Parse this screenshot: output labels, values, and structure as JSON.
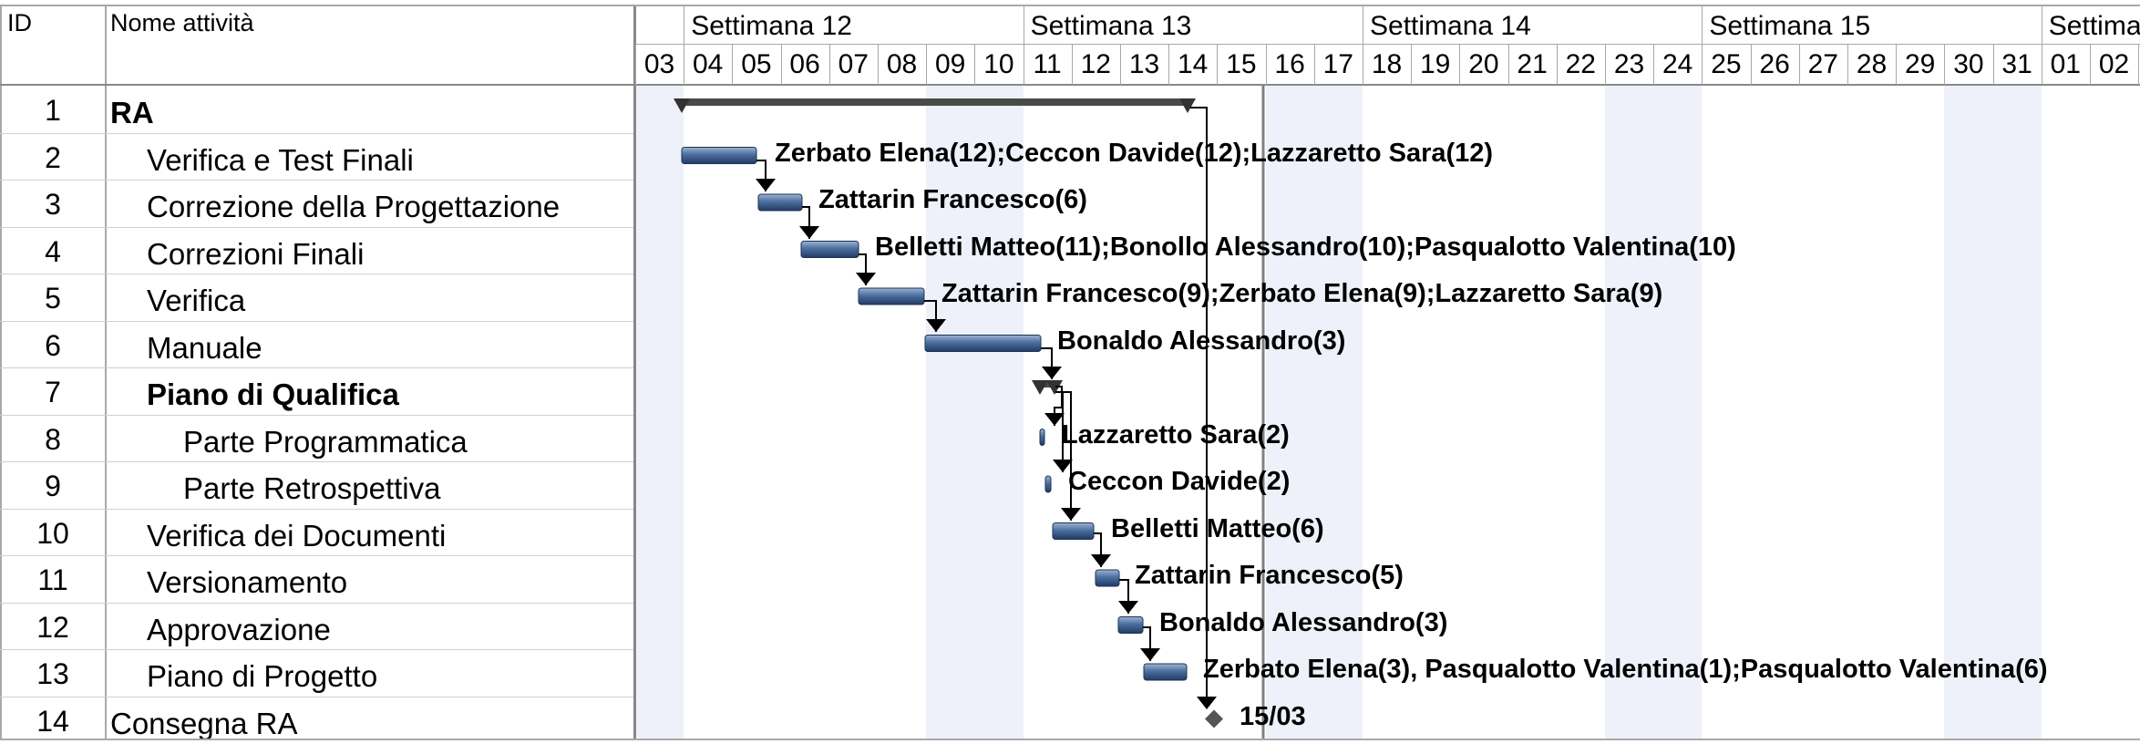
{
  "table": {
    "header_id": "ID",
    "header_name": "Nome attività",
    "rows": [
      {
        "id": "1",
        "name": "RA"
      },
      {
        "id": "2",
        "name": "Verifica e Test Finali"
      },
      {
        "id": "3",
        "name": "Correzione della Progettazione"
      },
      {
        "id": "4",
        "name": "Correzioni Finali"
      },
      {
        "id": "5",
        "name": "Verifica"
      },
      {
        "id": "6",
        "name": "Manuale"
      },
      {
        "id": "7",
        "name": "Piano di Qualifica"
      },
      {
        "id": "8",
        "name": "Parte Programmatica"
      },
      {
        "id": "9",
        "name": "Parte Retrospettiva"
      },
      {
        "id": "10",
        "name": "Verifica dei Documenti"
      },
      {
        "id": "11",
        "name": "Versionamento"
      },
      {
        "id": "12",
        "name": "Approvazione"
      },
      {
        "id": "13",
        "name": "Piano di Progetto"
      },
      {
        "id": "14",
        "name": "Consegna RA"
      }
    ]
  },
  "timeline": {
    "weeks": [
      "Settimana 12",
      "Settimana 13",
      "Settimana 14",
      "Settimana 15",
      "Settima"
    ],
    "days": [
      "03",
      "04",
      "05",
      "06",
      "07",
      "08",
      "09",
      "10",
      "11",
      "12",
      "13",
      "14",
      "15",
      "16",
      "17",
      "18",
      "19",
      "20",
      "21",
      "22",
      "23",
      "24",
      "25",
      "26",
      "27",
      "28",
      "29",
      "30",
      "31",
      "01",
      "02"
    ]
  },
  "gantt": {
    "resources": [
      "",
      "Zerbato Elena(12);Ceccon Davide(12);Lazzaretto Sara(12)",
      "Zattarin Francesco(6)",
      "Belletti Matteo(11);Bonollo Alessandro(10);Pasqualotto Valentina(10)",
      "Zattarin Francesco(9);Zerbato Elena(9);Lazzaretto Sara(9)",
      "Bonaldo Alessandro(3)",
      "",
      "Lazzaretto Sara(2)",
      "Ceccon Davide(2)",
      "Belletti Matteo(6)",
      "Zattarin Francesco(5)",
      "Bonaldo Alessandro(3)",
      "Zerbato Elena(3), Pasqualotto Valentina(1);Pasqualotto Valentina(6)",
      "15/03"
    ],
    "colors": {
      "bar": "#4b6f9f",
      "summary": "#555555",
      "weekend_shade": "#eef1fa",
      "today_line": "#808080"
    }
  }
}
